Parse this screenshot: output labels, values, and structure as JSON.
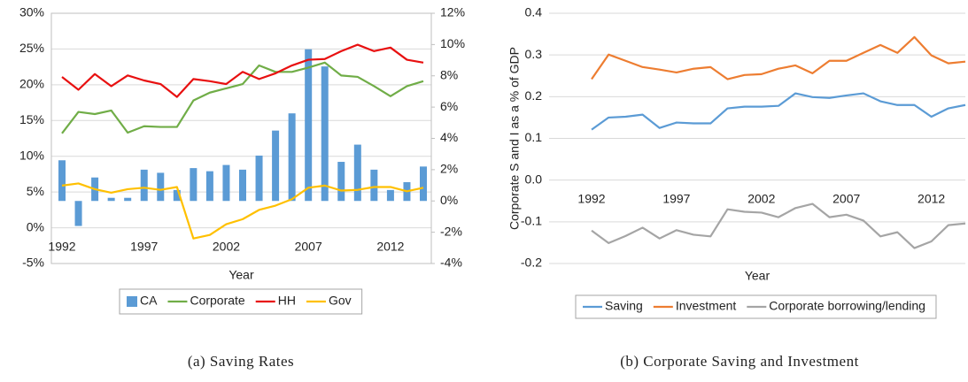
{
  "chart_data": [
    {
      "type": "combo",
      "caption": "(a) Saving Rates",
      "x_label": "Year",
      "categories": [
        1992,
        null,
        null,
        null,
        null,
        1997,
        null,
        null,
        null,
        null,
        2002,
        null,
        null,
        null,
        null,
        2007,
        null,
        null,
        null,
        null,
        2012,
        null,
        null
      ],
      "ylim": [
        -5,
        30
      ],
      "yticks": [
        {
          "value": -5,
          "label": "-5%"
        },
        {
          "value": 0,
          "label": "0%"
        },
        {
          "value": 5,
          "label": "5%"
        },
        {
          "value": 10,
          "label": "10%"
        },
        {
          "value": 15,
          "label": "15%"
        },
        {
          "value": 20,
          "label": "20%"
        },
        {
          "value": 25,
          "label": "25%"
        },
        {
          "value": 30,
          "label": "30%"
        }
      ],
      "y2lim": [
        -4,
        12
      ],
      "y2ticks": [
        {
          "value": -4,
          "label": "-4%"
        },
        {
          "value": -2,
          "label": "-2%"
        },
        {
          "value": 0,
          "label": "0%"
        },
        {
          "value": 2,
          "label": "2%"
        },
        {
          "value": 4,
          "label": "4%"
        },
        {
          "value": 6,
          "label": "6%"
        },
        {
          "value": 8,
          "label": "8%"
        },
        {
          "value": 10,
          "label": "10%"
        },
        {
          "value": 12,
          "label": "12%"
        }
      ],
      "grid": true,
      "legend": "bottom",
      "series": [
        {
          "name": "CA",
          "type": "bar",
          "axis": "y2",
          "color": "#5b9bd5",
          "values": [
            2.6,
            -1.6,
            1.5,
            0.2,
            0.2,
            2.0,
            1.8,
            0.7,
            2.1,
            1.9,
            2.3,
            2.0,
            2.9,
            4.5,
            5.6,
            9.7,
            8.6,
            2.5,
            3.6,
            2.0,
            0.7,
            1.2,
            2.2
          ]
        },
        {
          "name": "Corporate",
          "type": "line",
          "color": "#70ad47",
          "values": [
            13.2,
            16.2,
            15.9,
            16.4,
            13.3,
            14.2,
            14.1,
            14.1,
            17.8,
            18.9,
            19.5,
            20.1,
            22.7,
            21.8,
            21.8,
            22.4,
            23.1,
            21.3,
            21.1,
            19.8,
            18.4,
            19.8,
            20.5
          ]
        },
        {
          "name": "HH",
          "type": "line",
          "color": "#e81010",
          "values": [
            21.1,
            19.3,
            21.5,
            19.8,
            21.3,
            20.6,
            20.1,
            18.3,
            20.8,
            20.5,
            20.1,
            21.8,
            20.8,
            21.6,
            22.7,
            23.5,
            23.6,
            24.7,
            25.6,
            24.7,
            25.2,
            23.5,
            23.1
          ]
        },
        {
          "name": "Gov",
          "type": "line",
          "color": "#ffc000",
          "values": [
            5.9,
            6.2,
            5.4,
            4.9,
            5.4,
            5.6,
            5.3,
            5.7,
            -1.5,
            -1.0,
            0.5,
            1.2,
            2.5,
            3.1,
            4.0,
            5.6,
            5.9,
            5.2,
            5.3,
            5.7,
            5.7,
            5.1,
            5.6
          ]
        }
      ]
    },
    {
      "type": "line",
      "caption": "(b) Corporate Saving and Investment",
      "x_label": "Year",
      "y_label": "Corporate S and I as a % of GDP",
      "categories": [
        1992,
        null,
        null,
        null,
        null,
        1997,
        null,
        null,
        null,
        null,
        2002,
        null,
        null,
        null,
        null,
        2007,
        null,
        null,
        null,
        null,
        2012,
        null,
        null
      ],
      "ylim": [
        -0.2,
        0.4
      ],
      "yticks": [
        -0.2,
        -0.1,
        {
          "value": 0,
          "label": "0.0"
        },
        0.1,
        0.2,
        0.3,
        0.4
      ],
      "grid": true,
      "legend": "bottom",
      "series": [
        {
          "name": "Saving",
          "color": "#5b9bd5",
          "values": [
            0.121,
            0.15,
            0.152,
            0.157,
            0.125,
            0.138,
            0.136,
            0.136,
            0.172,
            0.176,
            0.176,
            0.178,
            0.208,
            0.199,
            0.197,
            0.203,
            0.208,
            0.189,
            0.18,
            0.18,
            0.152,
            0.172,
            0.18
          ]
        },
        {
          "name": "Investment",
          "color": "#ed7d31",
          "values": [
            0.242,
            0.301,
            0.286,
            0.271,
            0.265,
            0.258,
            0.267,
            0.271,
            0.242,
            0.252,
            0.254,
            0.267,
            0.275,
            0.256,
            0.286,
            0.286,
            0.305,
            0.324,
            0.305,
            0.343,
            0.299,
            0.28,
            0.284
          ]
        },
        {
          "name": "Corporate borrowing/lending",
          "color": "#a5a5a5",
          "values": [
            -0.121,
            -0.151,
            -0.134,
            -0.114,
            -0.14,
            -0.12,
            -0.131,
            -0.135,
            -0.07,
            -0.076,
            -0.078,
            -0.089,
            -0.067,
            -0.057,
            -0.089,
            -0.083,
            -0.097,
            -0.135,
            -0.125,
            -0.163,
            -0.147,
            -0.108,
            -0.104
          ]
        }
      ]
    }
  ]
}
